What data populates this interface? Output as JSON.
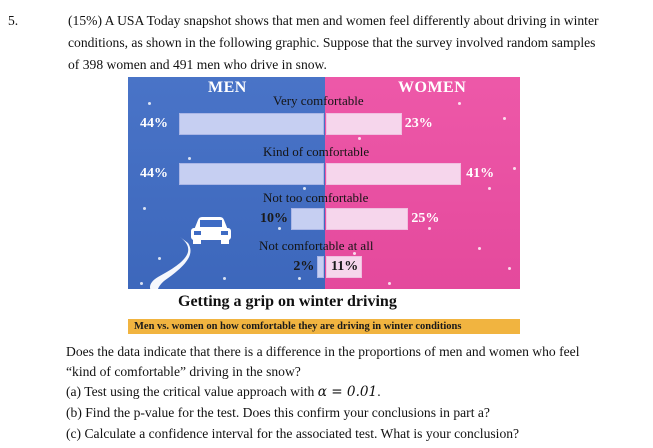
{
  "problem": {
    "number": "5.",
    "lines": [
      "(15%) A USA Today snapshot shows that men and women feel differently about driving in winter",
      "conditions, as shown in the following graphic. Suppose that the survey involved random samples",
      "of 398 women and 491 men who drive in snow."
    ]
  },
  "graphic": {
    "men_header": "MEN",
    "women_header": "WOMEN",
    "title": "Getting a grip on winter driving",
    "subtitle": "Men vs. women on how comfortable they are driving in winter conditions",
    "colors": {
      "men": "#3e6bc4",
      "women": "#ec4aa1",
      "bar_men": "#c6cff2",
      "bar_women": "#f6d6ec",
      "subtitle_bar": "#f1b440"
    },
    "icons": [
      "car-icon",
      "winding-road-icon"
    ]
  },
  "chart_data": {
    "type": "bar",
    "title": "Getting a grip on winter driving",
    "subtitle": "Men vs. women on how comfortable they are driving in winter conditions",
    "categories": [
      "Very comfortable",
      "Kind of comfortable",
      "Not too comfortable",
      "Not comfortable at all"
    ],
    "series": [
      {
        "name": "MEN",
        "values": [
          44,
          44,
          10,
          2
        ],
        "labels": [
          "44%",
          "44%",
          "10%",
          "2%"
        ]
      },
      {
        "name": "WOMEN",
        "values": [
          23,
          41,
          25,
          11
        ],
        "labels": [
          "23%",
          "41%",
          "25%",
          "11%"
        ]
      }
    ],
    "unit": "%",
    "ylim": [
      0,
      50
    ]
  },
  "questions": {
    "intro": [
      "Does the data indicate that there is a difference in the proportions of men and women who feel",
      "“kind of comfortable” driving in the snow?"
    ],
    "a_prefix": "(a) Test using the critical value approach with",
    "a_alpha": "α = 0.01",
    "a_suffix": ".",
    "b": "(b) Find the p-value for the test. Does this confirm your conclusions in part a?",
    "c": "(c) Calculate a confidence interval for the associated test. What is your conclusion?"
  }
}
